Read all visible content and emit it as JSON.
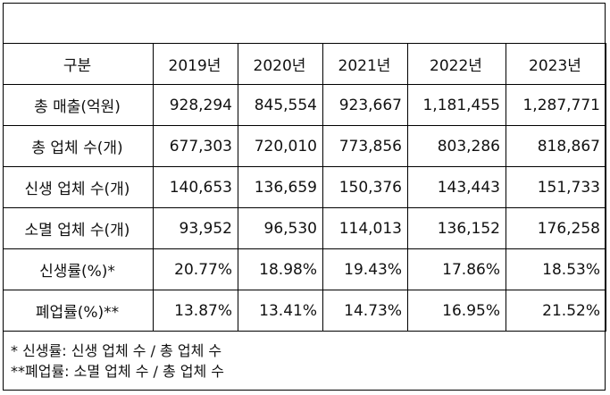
{
  "table": {
    "header": [
      "구분",
      "2019년",
      "2020년",
      "2021년",
      "2022년",
      "2023년"
    ],
    "rows": [
      {
        "label": "총 매출(억원)",
        "values": [
          "928,294",
          "845,554",
          "923,667",
          "1,181,455",
          "1,287,771"
        ]
      },
      {
        "label": "총 업체 수(개)",
        "values": [
          "677,303",
          "720,010",
          "773,856",
          "803,286",
          "818,867"
        ]
      },
      {
        "label": "신생 업체 수(개)",
        "values": [
          "140,653",
          "136,659",
          "150,376",
          "143,443",
          "151,733"
        ]
      },
      {
        "label": "소멸 업체 수(개)",
        "values": [
          "93,952",
          "96,530",
          "114,013",
          "136,152",
          "176,258"
        ]
      },
      {
        "label": "신생률(%)*",
        "values": [
          "20.77%",
          "18.98%",
          "19.43%",
          "17.86%",
          "18.53%"
        ]
      },
      {
        "label": "폐업률(%)**",
        "values": [
          "13.87%",
          "13.41%",
          "14.73%",
          "16.95%",
          "21.52%"
        ]
      }
    ]
  },
  "notes": [
    "* 신생률: 신생 업체 수 / 총 업체 수",
    "**폐업률: 소멸 업체 수 / 총 업체 수"
  ]
}
